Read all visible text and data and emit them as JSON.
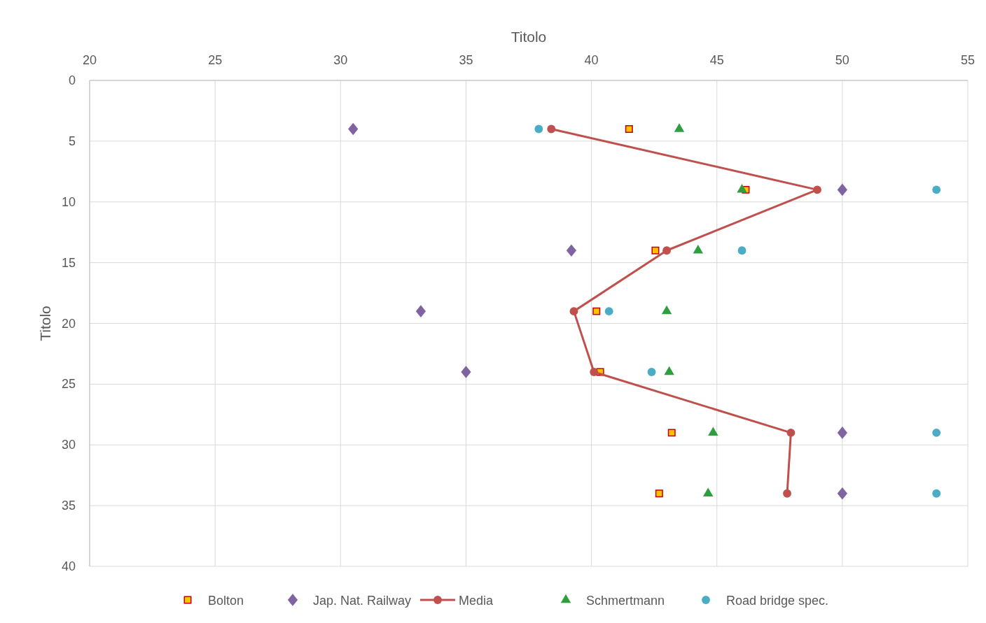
{
  "chart_data": {
    "type": "scatter",
    "xlabel": "Titolo",
    "ylabel": "Titolo",
    "xlim": [
      20,
      55
    ],
    "xticks": [
      20,
      25,
      30,
      35,
      40,
      45,
      50,
      55
    ],
    "ylim": [
      40,
      0
    ],
    "yticks": [
      0,
      5,
      10,
      15,
      20,
      25,
      30,
      35,
      40
    ],
    "grid": true,
    "legend": "bottom",
    "series": [
      {
        "name": "Bolton",
        "marker": "square",
        "color": "#ffc000",
        "x": [
          41.5,
          46.15,
          42.55,
          40.2,
          40.35,
          43.2,
          42.7
        ],
        "values": [
          4,
          9,
          14,
          19,
          24,
          29,
          34
        ]
      },
      {
        "name": "Jap. Nat. Railway",
        "marker": "diamond",
        "color": "#8064a2",
        "x": [
          30.5,
          50,
          39.2,
          33.2,
          35,
          50,
          50
        ],
        "values": [
          4,
          9,
          14,
          19,
          24,
          29,
          34
        ]
      },
      {
        "name": "Media",
        "type": "line",
        "marker": "circle",
        "line_style": "solid",
        "color": "#c0504d",
        "x": [
          38.4,
          49,
          43,
          39.3,
          40.1,
          47.95,
          47.8
        ],
        "values": [
          4,
          9,
          14,
          19,
          24,
          29,
          34
        ]
      },
      {
        "name": "Schmertmann",
        "marker": "triangle",
        "color": "#2e9e3e",
        "x": [
          43.5,
          46,
          44.25,
          43,
          43.1,
          44.85,
          44.65
        ],
        "values": [
          4,
          9,
          14,
          19,
          24,
          29,
          34
        ]
      },
      {
        "name": "Road bridge spec.",
        "marker": "circle",
        "color": "#4bacc6",
        "x": [
          37.9,
          53.75,
          46,
          40.7,
          42.4,
          53.75,
          53.75
        ],
        "values": [
          4,
          9,
          14,
          19,
          24,
          29,
          34
        ]
      }
    ]
  }
}
